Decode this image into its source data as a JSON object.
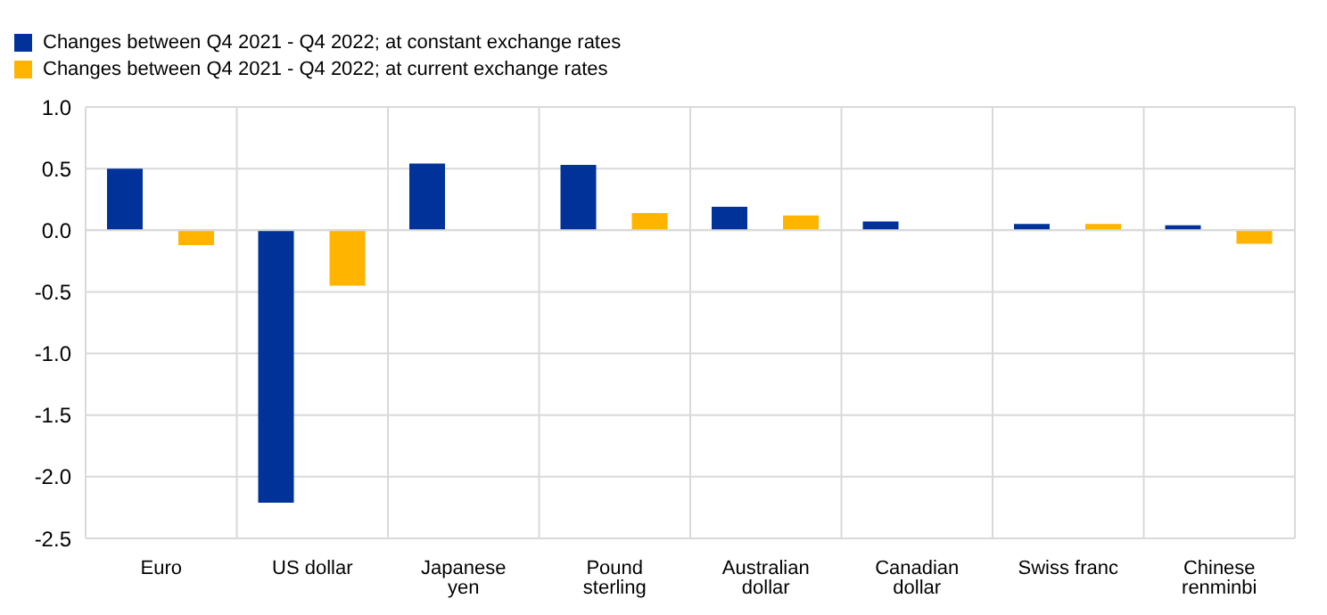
{
  "chart_data": {
    "type": "bar",
    "categories": [
      "Euro",
      "US dollar",
      "Japanese yen",
      "Pound sterling",
      "Australian dollar",
      "Canadian dollar",
      "Swiss franc",
      "Chinese renminbi"
    ],
    "series": [
      {
        "name": "Changes between Q4 2021 - Q4 2022; at constant exchange rates",
        "color": "#003299",
        "values": [
          0.5,
          -2.21,
          0.54,
          0.53,
          0.19,
          0.07,
          0.05,
          0.04
        ]
      },
      {
        "name": "Changes between Q4 2021 - Q4 2022; at current exchange rates",
        "color": "#ffb400",
        "values": [
          -0.12,
          -0.45,
          0.0,
          0.14,
          0.12,
          0.0,
          0.05,
          -0.11
        ]
      }
    ],
    "ylim": [
      -2.5,
      1.0
    ],
    "yticks": [
      {
        "value": -2.5,
        "label": "-2.5"
      },
      {
        "value": -2,
        "label": "-2.0"
      },
      {
        "value": -1.5,
        "label": "-1.5"
      },
      {
        "value": -1,
        "label": "-1.0"
      },
      {
        "value": -0.5,
        "label": "-0.5"
      },
      {
        "value": 0,
        "label": "0.0"
      },
      {
        "value": 0.5,
        "label": "0.5"
      },
      {
        "value": 1,
        "label": "1.0"
      }
    ],
    "grid": true,
    "legend": "top left"
  }
}
